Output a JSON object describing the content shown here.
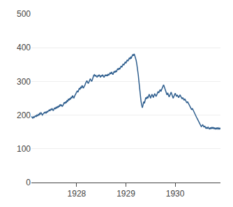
{
  "chart_data": {
    "type": "line",
    "x": [
      1927.08,
      1927.0939,
      1927.1078,
      1927.1217,
      1927.1357,
      1927.1496,
      1927.1635,
      1927.1774,
      1927.1913,
      1927.2052,
      1927.2191,
      1927.233,
      1927.247,
      1927.2609,
      1927.2748,
      1927.2887,
      1927.3026,
      1927.3165,
      1927.3304,
      1927.3443,
      1927.3583,
      1927.3722,
      1927.3861,
      1927.4,
      1927.4139,
      1927.4278,
      1927.4417,
      1927.4557,
      1927.4696,
      1927.4835,
      1927.4974,
      1927.5113,
      1927.5252,
      1927.5391,
      1927.553,
      1927.567,
      1927.5809,
      1927.5948,
      1927.6087,
      1927.6226,
      1927.6365,
      1927.6504,
      1927.6643,
      1927.6783,
      1927.6922,
      1927.7061,
      1927.72,
      1927.7339,
      1927.7478,
      1927.7617,
      1927.7757,
      1927.7896,
      1927.8035,
      1927.8174,
      1927.8313,
      1927.8452,
      1927.8591,
      1927.873,
      1927.887,
      1927.9009,
      1927.9148,
      1927.9287,
      1927.9426,
      1927.9565,
      1927.9704,
      1927.9843,
      1927.9983,
      1928.0122,
      1928.0261,
      1928.04,
      1928.0539,
      1928.0678,
      1928.0817,
      1928.0957,
      1928.1096,
      1928.1235,
      1928.1374,
      1928.1513,
      1928.1652,
      1928.1791,
      1928.193,
      1928.207,
      1928.2209,
      1928.2348,
      1928.2487,
      1928.2626,
      1928.2765,
      1928.2904,
      1928.3043,
      1928.3183,
      1928.3322,
      1928.3461,
      1928.36,
      1928.3739,
      1928.3878,
      1928.4017,
      1928.4157,
      1928.4296,
      1928.4435,
      1928.4574,
      1928.4713,
      1928.4852,
      1928.4991,
      1928.513,
      1928.527,
      1928.5409,
      1928.5548,
      1928.5687,
      1928.5826,
      1928.5965,
      1928.6104,
      1928.6243,
      1928.6383,
      1928.6522,
      1928.6661,
      1928.68,
      1928.6939,
      1928.7078,
      1928.7217,
      1928.7357,
      1928.7496,
      1928.7635,
      1928.7774,
      1928.7913,
      1928.8052,
      1928.8191,
      1928.833,
      1928.847,
      1928.8609,
      1928.8748,
      1928.8887,
      1928.9026,
      1928.9165,
      1928.9304,
      1928.9443,
      1928.9583,
      1928.9722,
      1928.9861,
      1929,
      1929.0139,
      1929.0278,
      1929.0417,
      1929.0557,
      1929.0696,
      1929.0835,
      1929.0974,
      1929.1113,
      1929.1252,
      1929.1391,
      1929.153,
      1929.167,
      1929.1809,
      1929.1948,
      1929.2087,
      1929.2226,
      1929.2365,
      1929.2504,
      1929.2643,
      1929.2783,
      1929.2922,
      1929.3061,
      1929.32,
      1929.3339,
      1929.3478,
      1929.3617,
      1929.3757,
      1929.3896,
      1929.4035,
      1929.4174,
      1929.4313,
      1929.4452,
      1929.4591,
      1929.473,
      1929.487,
      1929.5009,
      1929.5148,
      1929.5287,
      1929.5426,
      1929.5565,
      1929.5704,
      1929.5843,
      1929.5983,
      1929.6122,
      1929.6261,
      1929.64,
      1929.6539,
      1929.6678,
      1929.6817,
      1929.6957,
      1929.7096,
      1929.7235,
      1929.7374,
      1929.7513,
      1929.7652,
      1929.7791,
      1929.793,
      1929.807,
      1929.8209,
      1929.8348,
      1929.8487,
      1929.8626,
      1929.8765,
      1929.8904,
      1929.9043,
      1929.9183,
      1929.9322,
      1929.9461,
      1929.96,
      1929.9739,
      1929.9878,
      1930.0017,
      1930.0157,
      1930.0296,
      1930.0435,
      1930.0574,
      1930.0713,
      1930.0852,
      1930.0991,
      1930.113,
      1930.127,
      1930.1409,
      1930.1548,
      1930.1687,
      1930.1826,
      1930.1965,
      1930.2104,
      1930.2243,
      1930.2383,
      1930.2522,
      1930.2661,
      1930.28,
      1930.2939,
      1930.3078,
      1930.3217,
      1930.3357,
      1930.3496,
      1930.3635,
      1930.3774,
      1930.3913,
      1930.4052,
      1930.4191,
      1930.433,
      1930.447,
      1930.4609,
      1930.4748,
      1930.4887,
      1930.5026,
      1930.5165,
      1930.5304,
      1930.5443,
      1930.5583,
      1930.5722,
      1930.5861,
      1930.6,
      1930.6139,
      1930.6278,
      1930.6417,
      1930.6557,
      1930.6696,
      1930.6835,
      1930.6974,
      1930.7113,
      1930.7252,
      1930.7391,
      1930.753,
      1930.767,
      1930.7809,
      1930.7948,
      1930.8087,
      1930.8226,
      1930.8365,
      1930.8504,
      1930.8643,
      1930.8783,
      1930.8922,
      1930.9061,
      1930.92
    ],
    "values": [
      196,
      193,
      191,
      195,
      193,
      196,
      198,
      195,
      200,
      198,
      202,
      199,
      205,
      203,
      207,
      204,
      200,
      203,
      205,
      208,
      205,
      210,
      207,
      211,
      210,
      213,
      215,
      212,
      218,
      215,
      220,
      216,
      213,
      218,
      222,
      218,
      224,
      220,
      226,
      222,
      228,
      225,
      232,
      228,
      230,
      226,
      228,
      233,
      238,
      234,
      240,
      236,
      244,
      240,
      248,
      244,
      250,
      246,
      254,
      250,
      258,
      254,
      250,
      256,
      260,
      264,
      268,
      272,
      268,
      275,
      280,
      276,
      284,
      280,
      288,
      284,
      280,
      285,
      288,
      294,
      298,
      302,
      298,
      294,
      298,
      303,
      308,
      304,
      300,
      305,
      312,
      318,
      320,
      315,
      318,
      315,
      312,
      318,
      315,
      320,
      316,
      312,
      318,
      315,
      320,
      316,
      312,
      316,
      320,
      316,
      320,
      316,
      322,
      318,
      322,
      326,
      322,
      328,
      324,
      320,
      326,
      330,
      326,
      332,
      328,
      334,
      338,
      334,
      340,
      336,
      342,
      346,
      342,
      348,
      352,
      348,
      354,
      358,
      354,
      360,
      364,
      360,
      366,
      370,
      366,
      372,
      370,
      375,
      380,
      376,
      382,
      376,
      370,
      362,
      350,
      338,
      320,
      300,
      278,
      258,
      242,
      230,
      222,
      230,
      240,
      235,
      246,
      252,
      248,
      255,
      250,
      255,
      262,
      256,
      250,
      256,
      262,
      258,
      252,
      258,
      264,
      260,
      255,
      260,
      266,
      270,
      266,
      272,
      276,
      270,
      276,
      280,
      286,
      290,
      284,
      278,
      272,
      266,
      260,
      266,
      260,
      254,
      258,
      263,
      268,
      262,
      256,
      250,
      255,
      260,
      265,
      260,
      255,
      260,
      256,
      252,
      256,
      260,
      256,
      252,
      248,
      252,
      248,
      244,
      248,
      244,
      240,
      236,
      240,
      236,
      232,
      228,
      224,
      220,
      216,
      220,
      215,
      210,
      206,
      202,
      198,
      194,
      190,
      186,
      182,
      178,
      174,
      170,
      166,
      168,
      172,
      168,
      164,
      168,
      164,
      160,
      164,
      160,
      164,
      162,
      158,
      163,
      159,
      164,
      160,
      164,
      160,
      163,
      158,
      162,
      158,
      163,
      159,
      162,
      158,
      162,
      158
    ],
    "color": "#2e5e8e",
    "xlim": [
      1927.08,
      1930.92
    ],
    "xticks": [
      1928,
      1929,
      1930
    ],
    "ylim": [
      0,
      500
    ],
    "yticks": [
      0,
      100,
      200,
      300,
      400,
      500
    ],
    "grid": true
  }
}
